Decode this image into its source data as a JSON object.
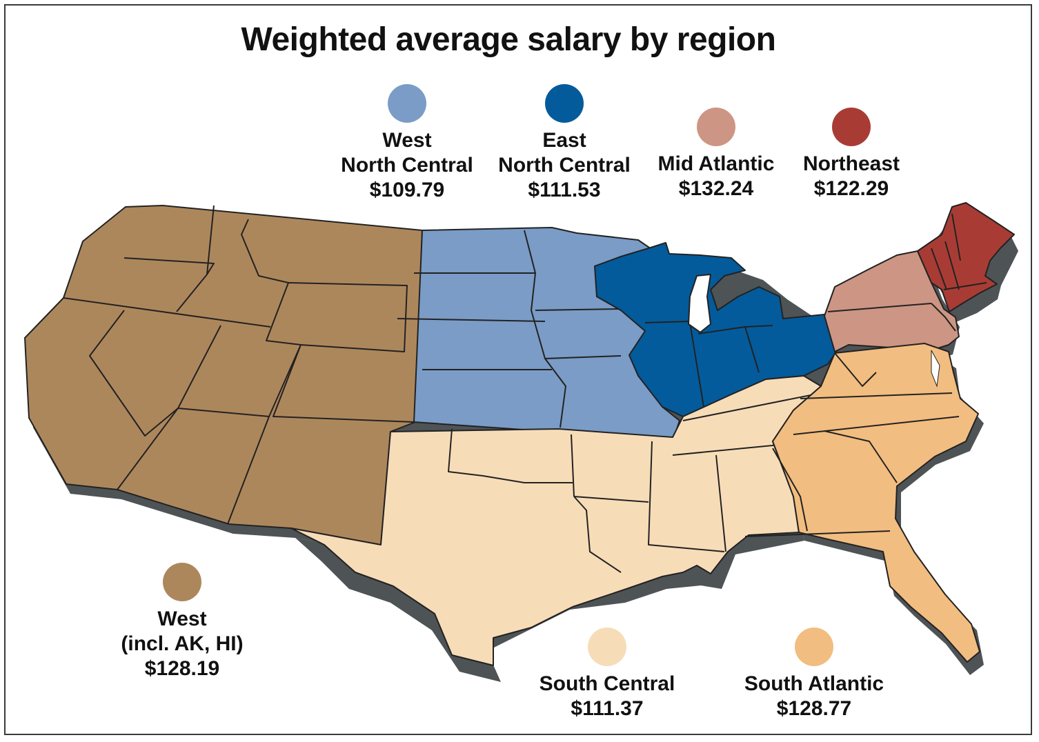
{
  "title": "Weighted average salary by region",
  "regions": {
    "west_north_central": {
      "name_line1": "West",
      "name_line2": "North Central",
      "value": "$109.79",
      "color": "#7a9cc6"
    },
    "east_north_central": {
      "name_line1": "East",
      "name_line2": "North Central",
      "value": "$111.53",
      "color": "#035b9b"
    },
    "mid_atlantic": {
      "name": "Mid Atlantic",
      "value": "$132.24",
      "color": "#cd9584"
    },
    "northeast": {
      "name": "Northeast",
      "value": "$122.29",
      "color": "#a83c35"
    },
    "west": {
      "name_line1": "West",
      "name_line2": "(incl. AK, HI)",
      "value": "$128.19",
      "color": "#ad875c"
    },
    "south_central": {
      "name": "South Central",
      "value": "$111.37",
      "color": "#f7dcb8"
    },
    "south_atlantic": {
      "name": "South Atlantic",
      "value": "$128.77",
      "color": "#f2bd80"
    }
  },
  "shadow_color": "#4e5356"
}
